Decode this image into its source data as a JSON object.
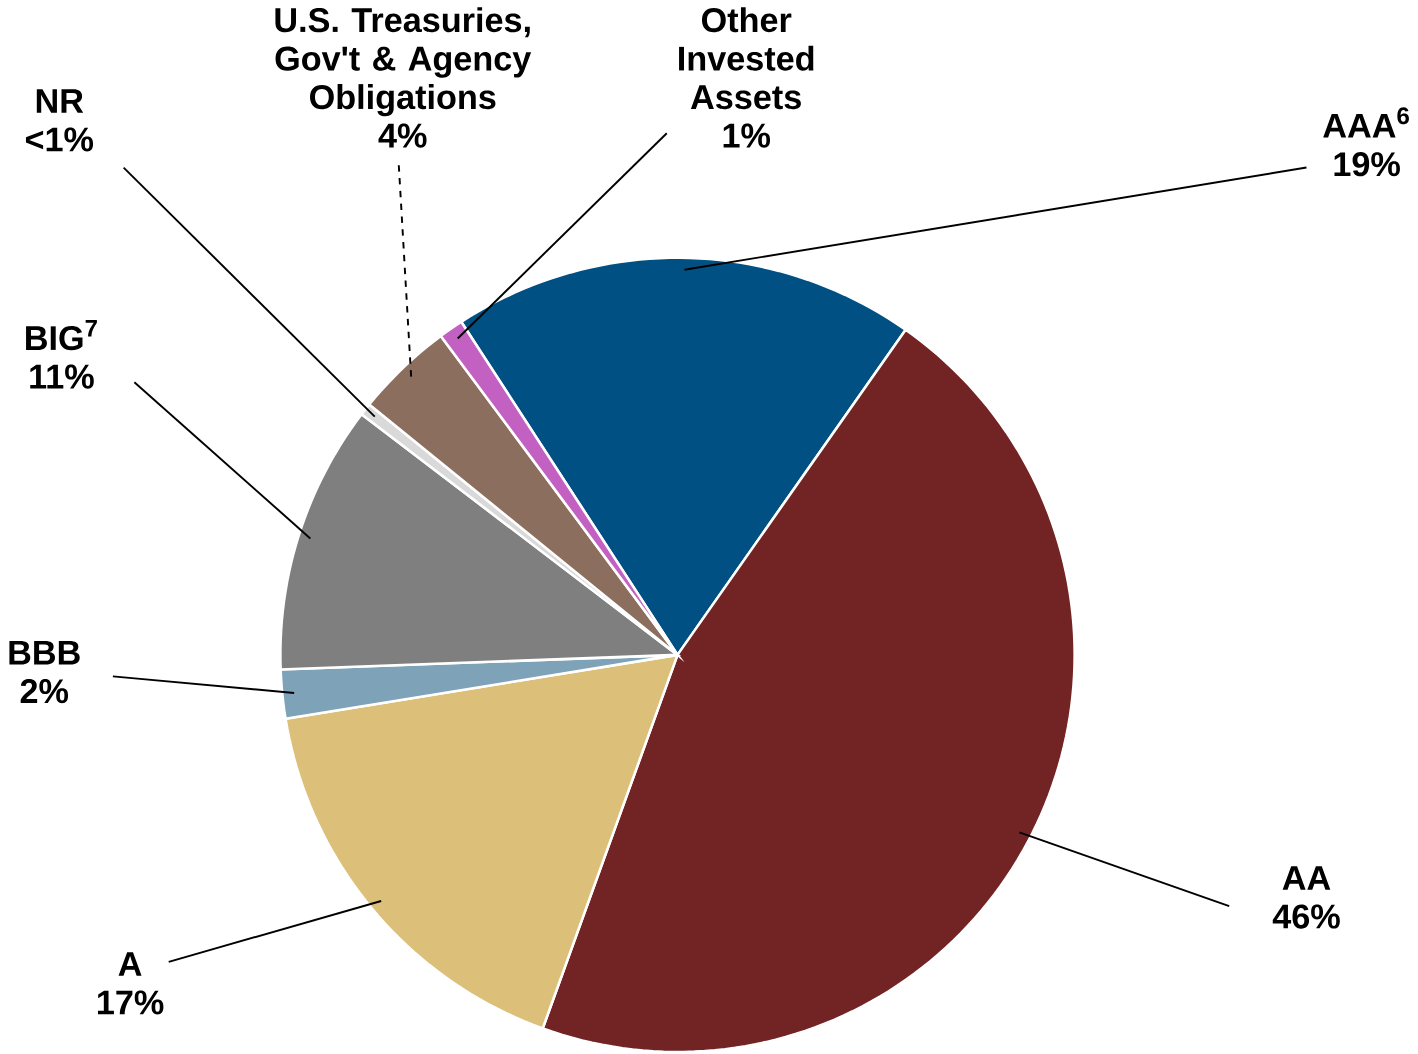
{
  "chart_data": {
    "type": "pie",
    "categories": [
      "AAA$^{6}$",
      "AA",
      "A",
      "BBB",
      "BIG$^{7}$",
      "NR",
      "U.S. Treasuries, Gov't & Agency Obligations",
      "Other Invested Assets"
    ],
    "values": [
      19,
      46,
      17,
      2,
      11,
      0.5,
      4,
      1
    ],
    "value_labels": [
      "19%",
      "46%",
      "17%",
      "2%",
      "11%",
      "<1%",
      "4%",
      "1%"
    ],
    "colors": [
      "#005083",
      "#722324",
      "#dcbf79",
      "#7ea3b8",
      "#7f7f7f",
      "#d9d9d9",
      "#8c6e5e",
      "#c261c2"
    ]
  }
}
